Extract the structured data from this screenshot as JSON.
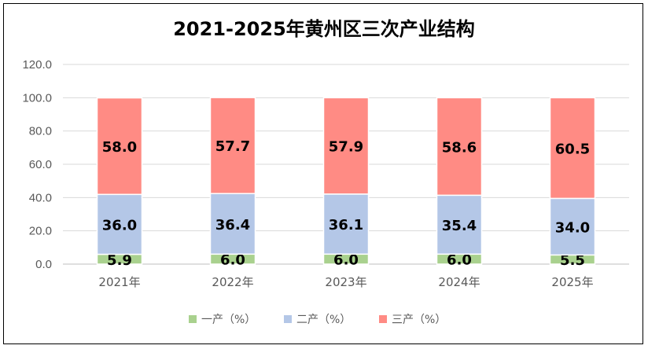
{
  "chart_data": {
    "type": "bar",
    "stacked": true,
    "title": "2021-2025年黄州区三次产业结构",
    "categories": [
      "2021年",
      "2022年",
      "2023年",
      "2024年",
      "2025年"
    ],
    "series": [
      {
        "name": "一产（%）",
        "values": [
          5.9,
          6.0,
          6.0,
          6.0,
          5.5
        ],
        "labels": [
          "5.9",
          "6.0",
          "6.0",
          "6.0",
          "5.5"
        ],
        "color": "#A9D18E"
      },
      {
        "name": "二产（%）",
        "values": [
          36.0,
          36.4,
          36.1,
          35.4,
          34.0
        ],
        "labels": [
          "36.0",
          "36.4",
          "36.1",
          "35.4",
          "34.0"
        ],
        "color": "#B4C7E7"
      },
      {
        "name": "三产（%）",
        "values": [
          58.0,
          57.7,
          57.9,
          58.6,
          60.5
        ],
        "labels": [
          "58.0",
          "57.7",
          "57.9",
          "58.6",
          "60.5"
        ],
        "color": "#FF8B84"
      }
    ],
    "yticks": [
      "0.0",
      "20.0",
      "40.0",
      "60.0",
      "80.0",
      "100.0",
      "120.0"
    ],
    "ylim": [
      0,
      120
    ],
    "grid": true,
    "legend_position": "bottom"
  }
}
